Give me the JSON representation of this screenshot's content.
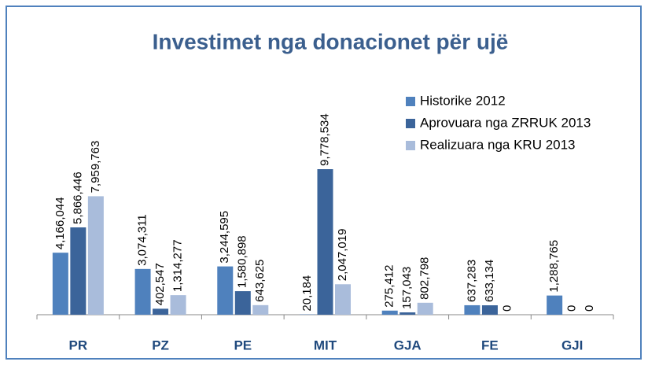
{
  "chart_data": {
    "type": "bar",
    "title": "Investimet nga donacionet për ujë",
    "categories": [
      "PR",
      "PZ",
      "PE",
      "MIT",
      "GJA",
      "FE",
      "GJI"
    ],
    "legend": "top-right",
    "series": [
      {
        "name": "Historike 2012",
        "color": "#4f81bd",
        "values": [
          4166044,
          3074311,
          3244595,
          20184,
          275412,
          637283,
          1288765
        ],
        "value_labels": [
          "4,166,044",
          "3,074,311",
          "3,244,595",
          "20,184",
          "275,412",
          "637,283",
          "1,288,765"
        ]
      },
      {
        "name": "Aprovuara nga ZRRUK 2013",
        "color": "#3b649a",
        "values": [
          5866446,
          402547,
          1580898,
          9778534,
          157043,
          633134,
          0
        ],
        "value_labels": [
          "5,866,446",
          "402,547",
          "1,580,898",
          "9,778,534",
          "157,043",
          "633,134",
          "0"
        ]
      },
      {
        "name": "Realizuara nga KRU 2013",
        "color": "#a9bcdb",
        "values": [
          7959763,
          1314277,
          643625,
          2047019,
          802798,
          0,
          0
        ],
        "value_labels": [
          "7,959,763",
          "1,314,277",
          "643,625",
          "2,047,019",
          "802,798",
          "0",
          "0"
        ]
      }
    ]
  }
}
